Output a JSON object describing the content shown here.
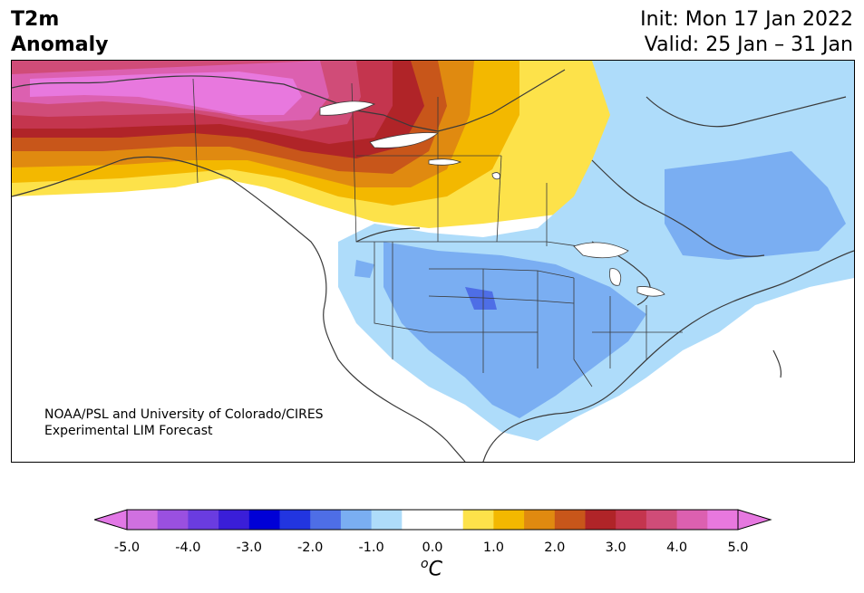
{
  "header": {
    "title_line1": "T2m",
    "title_line2": "Anomaly",
    "init_text": "Init: Mon 17 Jan 2022",
    "valid_text": "Valid: 25 Jan – 31 Jan"
  },
  "credit": {
    "line1": "NOAA/PSL and University of Colorado/CIRES",
    "line2": "Experimental LIM Forecast"
  },
  "colorbar": {
    "unit_sup": "o",
    "unit_main": "C",
    "tick_labels": [
      "-5.0",
      "-4.0",
      "-3.0",
      "-2.0",
      "-1.0",
      "0.0",
      "1.0",
      "2.0",
      "3.0",
      "4.0",
      "5.0"
    ],
    "tick_values": [
      -5,
      -4,
      -3,
      -2,
      -1,
      0,
      1,
      2,
      3,
      4,
      5
    ],
    "min_extend_color": "#e278e6",
    "max_extend_color": "#e678e0",
    "bin_colors": [
      "#d070e0",
      "#9a50e0",
      "#6a3ce0",
      "#3a1ed8",
      "#0000d6",
      "#2235e0",
      "#4e6ee6",
      "#7aaef2",
      "#aedcfa",
      "#ffffff",
      "#ffffff",
      "#fde24a",
      "#f3b800",
      "#e08a10",
      "#c8561a",
      "#b02428",
      "#c4354e",
      "#d04c78",
      "#dc60b0",
      "#e878de"
    ]
  },
  "map": {
    "region": "North America",
    "variable": "2m temperature anomaly",
    "land_outline_color": "#3a3a3a",
    "ocean_color": "#ffffff"
  }
}
